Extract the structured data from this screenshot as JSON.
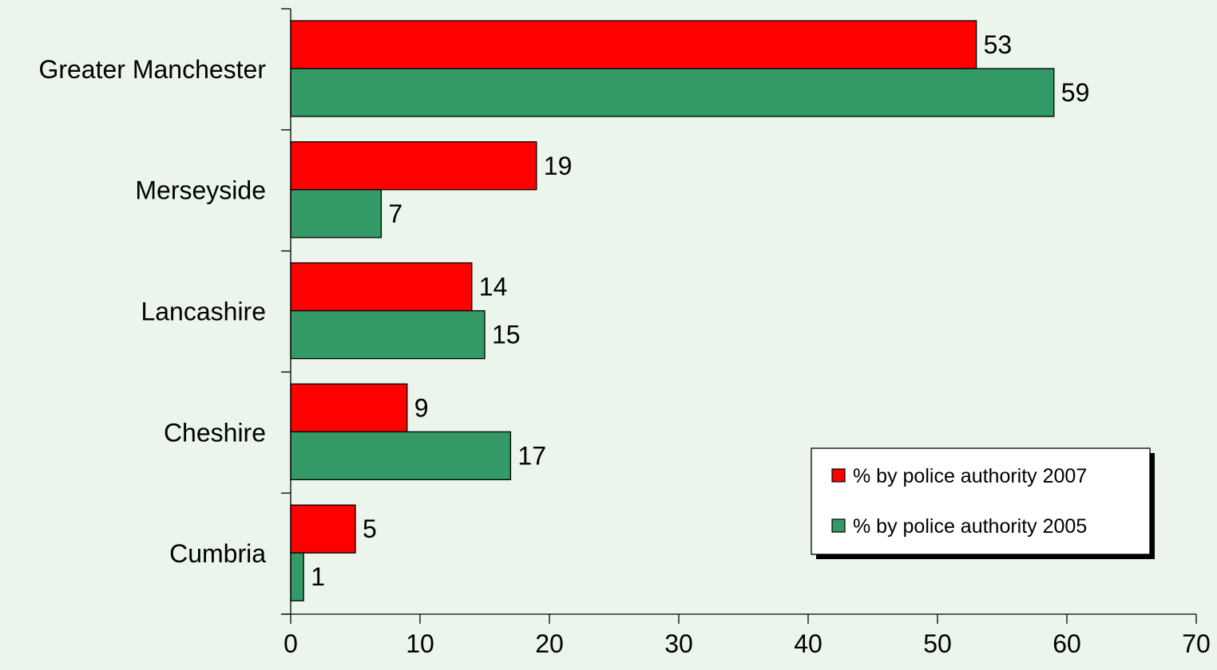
{
  "chart_data": {
    "type": "bar",
    "orientation": "horizontal",
    "categories": [
      "Greater Manchester",
      "Merseyside",
      "Lancashire",
      "Cheshire",
      "Cumbria"
    ],
    "series": [
      {
        "name": "% by police authority 2007",
        "color": "#ff0000",
        "values": [
          53,
          19,
          14,
          9,
          5
        ]
      },
      {
        "name": "% by police authority 2005",
        "color": "#339966",
        "values": [
          59,
          7,
          15,
          17,
          1
        ]
      }
    ],
    "xlim": [
      0,
      70
    ],
    "xticks": [
      0,
      10,
      20,
      30,
      40,
      50,
      60,
      70
    ],
    "title": "",
    "xlabel": "",
    "ylabel": "",
    "grid": false,
    "data_labels": true,
    "legend_position": "bottom-right",
    "background": "#ebf5eb"
  }
}
